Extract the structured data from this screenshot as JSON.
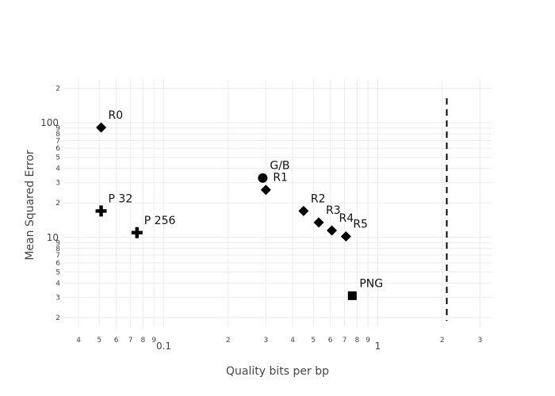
{
  "chart_data": {
    "type": "scatter",
    "title": "",
    "xlabel": "Quality bits per bp",
    "ylabel": "Mean Squared Error",
    "x_scale": "log",
    "y_scale": "log",
    "xlim": [
      0.034,
      3.4
    ],
    "ylim": [
      1.65,
      240
    ],
    "grid": true,
    "reference_line": {
      "style": "dashed",
      "x": 2.1
    },
    "points": [
      {
        "label": "R0",
        "x": 0.051,
        "y": 91,
        "marker": "diamond"
      },
      {
        "label": "P 32",
        "x": 0.051,
        "y": 17,
        "marker": "cross"
      },
      {
        "label": "P 256",
        "x": 0.075,
        "y": 11,
        "marker": "cross"
      },
      {
        "label": "G/B",
        "x": 0.29,
        "y": 33,
        "marker": "circle"
      },
      {
        "label": "R1",
        "x": 0.3,
        "y": 26,
        "marker": "diamond"
      },
      {
        "label": "R2",
        "x": 0.45,
        "y": 17,
        "marker": "diamond"
      },
      {
        "label": "R3",
        "x": 0.53,
        "y": 13.5,
        "marker": "diamond"
      },
      {
        "label": "R4",
        "x": 0.61,
        "y": 11.5,
        "marker": "diamond"
      },
      {
        "label": "R5",
        "x": 0.71,
        "y": 10.2,
        "marker": "diamond"
      },
      {
        "label": "PNG",
        "x": 0.76,
        "y": 3.1,
        "marker": "square"
      }
    ],
    "x_ticks": [
      {
        "v": 0.04,
        "t": "4"
      },
      {
        "v": 0.05,
        "t": "5"
      },
      {
        "v": 0.06,
        "t": "6"
      },
      {
        "v": 0.07,
        "t": "7"
      },
      {
        "v": 0.08,
        "t": "8"
      },
      {
        "v": 0.09,
        "t": "9"
      },
      {
        "v": 0.1,
        "t": "0.1",
        "major": true
      },
      {
        "v": 0.2,
        "t": "2"
      },
      {
        "v": 0.3,
        "t": "3"
      },
      {
        "v": 0.4,
        "t": "4"
      },
      {
        "v": 0.5,
        "t": "5"
      },
      {
        "v": 0.6,
        "t": "6"
      },
      {
        "v": 0.7,
        "t": "7"
      },
      {
        "v": 0.8,
        "t": "8"
      },
      {
        "v": 0.9,
        "t": "9"
      },
      {
        "v": 1,
        "t": "1",
        "major": true
      },
      {
        "v": 2,
        "t": "2"
      },
      {
        "v": 3,
        "t": "3"
      }
    ],
    "y_ticks": [
      {
        "v": 2,
        "t": "2"
      },
      {
        "v": 3,
        "t": "3"
      },
      {
        "v": 4,
        "t": "4"
      },
      {
        "v": 5,
        "t": "5"
      },
      {
        "v": 6,
        "t": "6"
      },
      {
        "v": 7,
        "t": "7"
      },
      {
        "v": 8,
        "t": "8"
      },
      {
        "v": 9,
        "t": "9"
      },
      {
        "v": 10,
        "t": "10",
        "major": true
      },
      {
        "v": 20,
        "t": "2"
      },
      {
        "v": 30,
        "t": "3"
      },
      {
        "v": 40,
        "t": "4"
      },
      {
        "v": 50,
        "t": "5"
      },
      {
        "v": 60,
        "t": "6"
      },
      {
        "v": 70,
        "t": "7"
      },
      {
        "v": 80,
        "t": "8"
      },
      {
        "v": 90,
        "t": "9"
      },
      {
        "v": 100,
        "t": "100",
        "major": true
      },
      {
        "v": 200,
        "t": "2"
      }
    ],
    "colors": {
      "marker": "#000000",
      "grid": "#ebebeb",
      "text": "#444444"
    }
  }
}
